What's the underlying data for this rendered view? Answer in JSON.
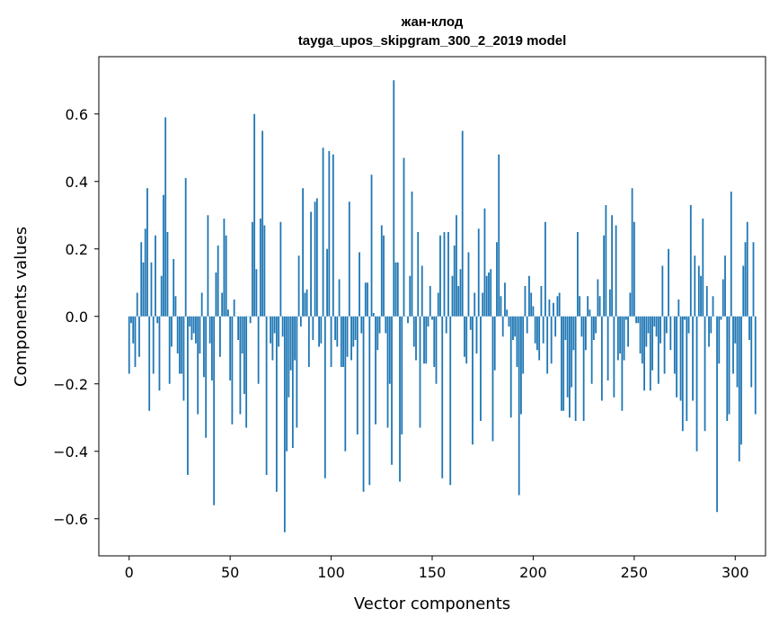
{
  "chart_data": {
    "type": "bar",
    "title": "жан-клод",
    "subtitle": "tayga_upos_skipgram_300_2_2019 model",
    "xlabel": "Vector components",
    "ylabel": "Components values",
    "xlim": [
      -15,
      315
    ],
    "ylim": [
      -0.71,
      0.77
    ],
    "xticks": [
      0,
      50,
      100,
      150,
      200,
      250,
      300
    ],
    "xtick_labels": [
      "0",
      "50",
      "100",
      "150",
      "200",
      "250",
      "300"
    ],
    "yticks": [
      -0.6,
      -0.4,
      -0.2,
      0.0,
      0.2,
      0.4,
      0.6
    ],
    "ytick_labels": [
      "−0.6",
      "−0.4",
      "−0.2",
      "0.0",
      "0.2",
      "0.4",
      "0.6"
    ],
    "bar_color": "#1f77b4",
    "grid": false,
    "values": [
      -0.17,
      -0.02,
      -0.08,
      -0.15,
      0.07,
      -0.12,
      0.22,
      0.16,
      0.26,
      0.38,
      -0.28,
      0.16,
      -0.17,
      0.24,
      -0.02,
      -0.22,
      0.12,
      0.36,
      0.59,
      0.25,
      -0.2,
      -0.09,
      0.17,
      0.06,
      -0.11,
      -0.17,
      -0.17,
      -0.25,
      0.41,
      -0.47,
      -0.03,
      -0.07,
      -0.05,
      -0.08,
      -0.29,
      -0.11,
      0.07,
      -0.18,
      -0.36,
      0.3,
      -0.08,
      -0.19,
      -0.56,
      0.13,
      0.21,
      -0.12,
      0.07,
      0.29,
      0.24,
      0.02,
      -0.19,
      -0.32,
      0.05,
      0.0,
      -0.07,
      -0.29,
      -0.11,
      -0.23,
      -0.33,
      0.0,
      -0.02,
      0.28,
      0.6,
      0.14,
      -0.2,
      0.29,
      0.55,
      0.27,
      -0.47,
      0.0,
      -0.08,
      -0.13,
      -0.05,
      -0.52,
      -0.09,
      0.28,
      -0.06,
      -0.64,
      -0.4,
      -0.24,
      -0.16,
      -0.39,
      -0.13,
      -0.33,
      0.18,
      -0.03,
      0.38,
      0.07,
      0.08,
      -0.15,
      0.31,
      -0.07,
      0.34,
      0.35,
      -0.09,
      -0.08,
      0.5,
      -0.48,
      0.2,
      0.49,
      -0.15,
      0.48,
      -0.07,
      -0.09,
      0.11,
      -0.15,
      -0.15,
      -0.4,
      -0.12,
      0.34,
      -0.13,
      -0.09,
      -0.07,
      -0.35,
      0.19,
      -0.05,
      -0.52,
      0.1,
      0.1,
      -0.5,
      0.42,
      0.01,
      -0.32,
      -0.1,
      -0.05,
      0.27,
      0.24,
      -0.05,
      -0.33,
      -0.2,
      -0.44,
      0.7,
      0.16,
      0.16,
      -0.49,
      -0.35,
      0.47,
      0.0,
      -0.02,
      0.12,
      0.37,
      -0.09,
      -0.13,
      0.25,
      -0.33,
      0.15,
      -0.14,
      -0.14,
      -0.03,
      0.09,
      -0.01,
      -0.15,
      -0.2,
      0.07,
      0.24,
      -0.48,
      0.25,
      -0.05,
      0.25,
      -0.5,
      0.12,
      0.21,
      0.3,
      0.09,
      0.14,
      0.55,
      -0.12,
      -0.14,
      0.19,
      -0.04,
      -0.38,
      0.07,
      -0.11,
      0.26,
      -0.31,
      0.07,
      0.32,
      0.12,
      0.13,
      0.14,
      -0.37,
      -0.16,
      0.22,
      0.48,
      0.06,
      -0.06,
      0.1,
      0.02,
      -0.03,
      -0.3,
      -0.07,
      -0.06,
      -0.15,
      -0.53,
      -0.29,
      -0.17,
      0.09,
      -0.05,
      0.12,
      0.07,
      0.03,
      -0.08,
      -0.1,
      -0.13,
      0.09,
      -0.08,
      0.28,
      -0.17,
      0.05,
      -0.14,
      0.04,
      -0.06,
      0.06,
      0.07,
      -0.28,
      -0.28,
      -0.07,
      -0.24,
      -0.3,
      -0.21,
      -0.1,
      -0.31,
      0.25,
      0.06,
      -0.06,
      -0.31,
      -0.1,
      0.06,
      0.02,
      -0.2,
      -0.07,
      -0.05,
      0.11,
      0.06,
      -0.25,
      0.24,
      0.33,
      -0.19,
      0.08,
      0.3,
      -0.24,
      0.27,
      -0.13,
      -0.11,
      -0.28,
      -0.13,
      -0.01,
      -0.09,
      0.07,
      0.38,
      0.28,
      -0.02,
      -0.02,
      -0.11,
      -0.14,
      -0.22,
      -0.09,
      -0.05,
      -0.22,
      -0.16,
      -0.03,
      -0.06,
      -0.2,
      -0.08,
      0.15,
      -0.17,
      -0.05,
      0.2,
      -0.1,
      0.0,
      -0.17,
      -0.24,
      0.05,
      -0.25,
      -0.34,
      -0.01,
      -0.31,
      -0.05,
      0.33,
      -0.25,
      0.18,
      -0.4,
      0.15,
      0.12,
      0.29,
      -0.34,
      0.09,
      -0.09,
      -0.05,
      0.06,
      0.0,
      -0.58,
      -0.14,
      -0.01,
      0.11,
      0.18,
      -0.31,
      -0.29,
      0.37,
      -0.17,
      -0.08,
      -0.21,
      -0.43,
      -0.38,
      0.15,
      0.22,
      0.28,
      -0.07,
      -0.21,
      0.22,
      -0.29
    ]
  }
}
